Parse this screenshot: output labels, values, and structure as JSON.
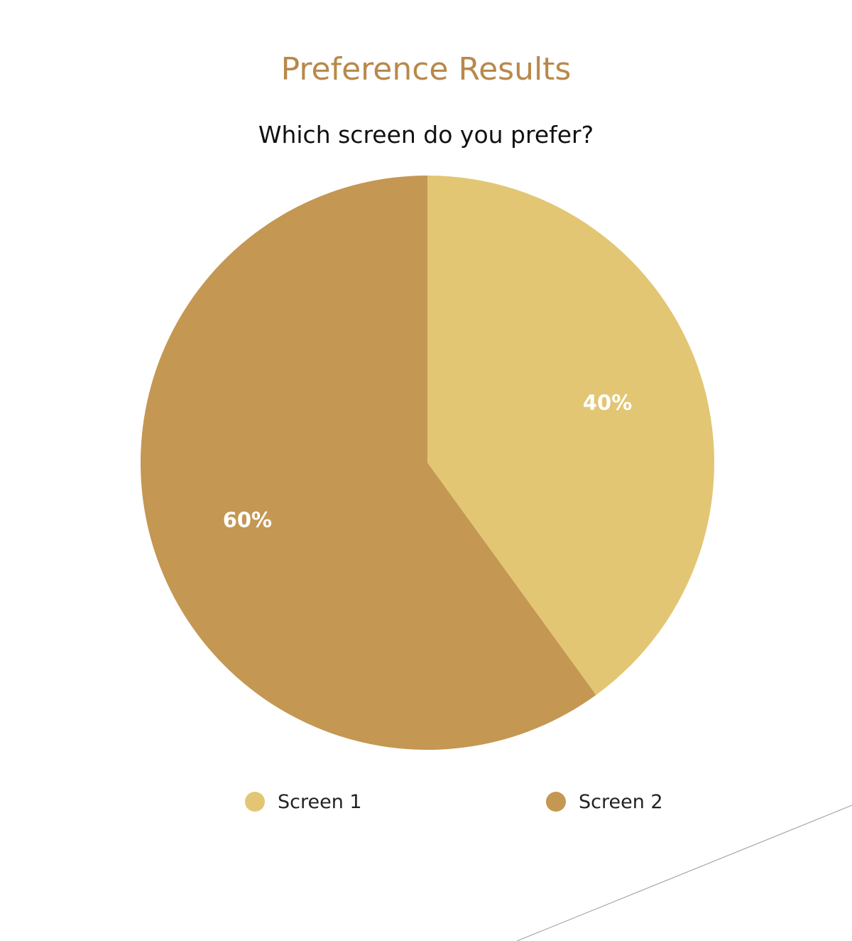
{
  "page": {
    "title": "Preference Results"
  },
  "chart_data": {
    "type": "pie",
    "title": "Which screen do you prefer?",
    "categories": [
      "Screen 1",
      "Screen 2"
    ],
    "values": [
      40,
      60
    ],
    "labels": [
      "40%",
      "60%"
    ],
    "colors": [
      "#E2C674",
      "#C49752"
    ],
    "legend": "bottom"
  },
  "colors": {
    "title": "#B8894A",
    "background": "#ffffff"
  }
}
